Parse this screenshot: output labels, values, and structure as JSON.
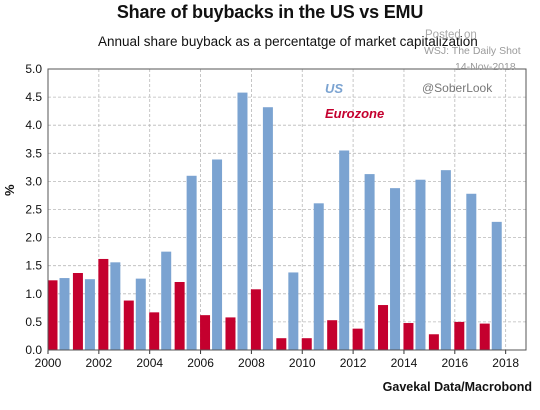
{
  "chart_data": {
    "type": "bar",
    "title": "Share of buybacks in the US vs EMU",
    "subtitle": "Annual share buyback as a percentatge of market capitalization",
    "ylabel": "%",
    "xlabel": "",
    "source": "Gavekal Data/Macrobond",
    "ylim": [
      0,
      5
    ],
    "y_ticks": [
      "0.0",
      "0.5",
      "1.0",
      "1.5",
      "2.0",
      "2.5",
      "3.0",
      "3.5",
      "4.0",
      "4.5",
      "5.0"
    ],
    "x_ticks": [
      "2000",
      "2002",
      "2004",
      "2006",
      "2008",
      "2010",
      "2012",
      "2014",
      "2016",
      "2018"
    ],
    "categories": [
      "2000",
      "2001",
      "2002",
      "2003",
      "2004",
      "2005",
      "2006",
      "2007",
      "2008",
      "2009",
      "2010",
      "2011",
      "2012",
      "2013",
      "2014",
      "2015",
      "2016",
      "2017"
    ],
    "series": [
      {
        "name": "Eurozone",
        "color": "#c4002e",
        "values": [
          1.24,
          1.37,
          1.62,
          0.88,
          0.67,
          1.21,
          0.62,
          0.58,
          1.08,
          0.21,
          0.21,
          0.53,
          0.38,
          0.8,
          0.48,
          0.28,
          0.5,
          0.47
        ]
      },
      {
        "name": "US",
        "color": "#7ba3d1",
        "values": [
          1.28,
          1.26,
          1.56,
          1.27,
          1.75,
          3.1,
          3.39,
          4.58,
          4.32,
          1.38,
          2.61,
          3.55,
          3.13,
          2.88,
          3.03,
          3.2,
          2.78,
          2.28
        ]
      }
    ],
    "legend": [
      "US",
      "Eurozone"
    ],
    "legend_placement": "top-right",
    "grid": true
  },
  "watermark": {
    "posted_on": "Posted on",
    "outlet": "WSJ: The Daily Shot",
    "date": "14-Nov-2018",
    "user": "@SoberLook"
  }
}
